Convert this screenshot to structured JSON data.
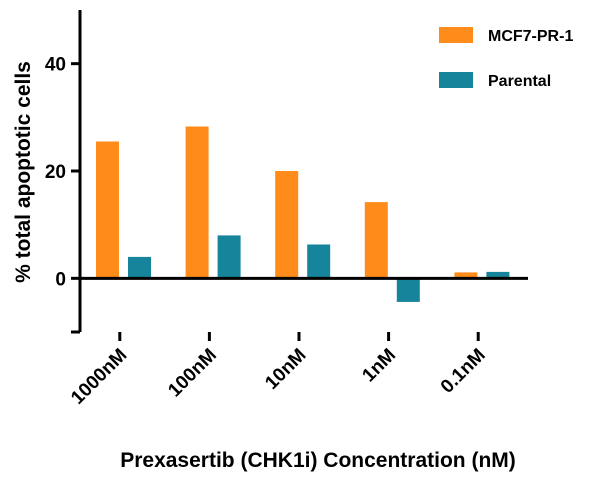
{
  "chart_data": {
    "type": "bar",
    "title": "",
    "xlabel": "Prexasertib (CHK1i) Concentration (nM)",
    "ylabel": "% total apoptotic cells",
    "categories": [
      "1000nM",
      "100nM",
      "10nM",
      "1nM",
      "0.1nM"
    ],
    "series": [
      {
        "name": "MCF7-PR-1",
        "values": [
          25.5,
          28.3,
          20.0,
          14.2,
          1.1
        ],
        "color": "#FF8C1A"
      },
      {
        "name": "Parental",
        "values": [
          4.0,
          8.0,
          6.3,
          -4.4,
          1.2
        ],
        "color": "#16849A"
      }
    ],
    "ylim": [
      -10,
      50
    ],
    "yticks": [
      0,
      20,
      40
    ],
    "grid": false,
    "legend_position": "top-right"
  }
}
